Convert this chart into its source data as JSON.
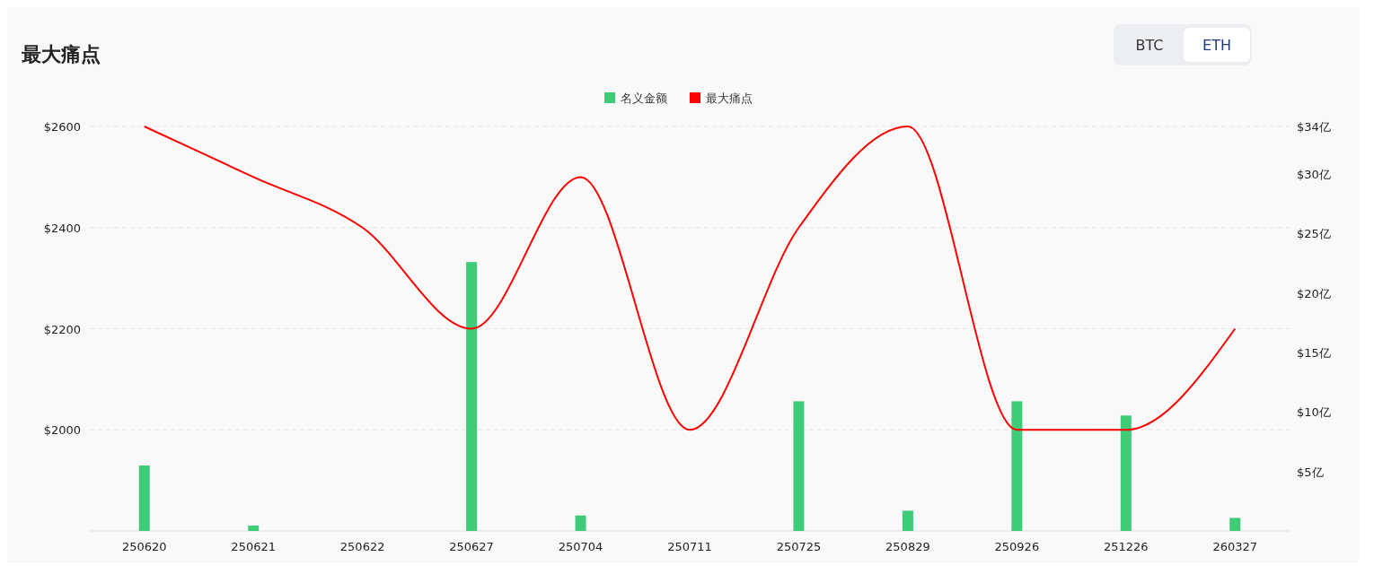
{
  "chart_data": {
    "type": "bar",
    "title": "最大痛点",
    "annotations": [
      "BTC",
      "ETH"
    ],
    "categories": [
      "250620",
      "250621",
      "250622",
      "250627",
      "250704",
      "250711",
      "250725",
      "250829",
      "250926",
      "251226",
      "260327"
    ],
    "series": [
      {
        "name": "名义金额",
        "axis": "y2",
        "color": "#3ecc78",
        "values": [
          5.5,
          0.45,
          0,
          22.6,
          1.3,
          0,
          10.9,
          1.7,
          10.9,
          9.7,
          1.1
        ]
      },
      {
        "name": "最大痛点",
        "type": "line",
        "color": "#ff0000",
        "values": [
          2600,
          2500,
          2400,
          2200,
          2500,
          2000,
          2400,
          2600,
          2000,
          2000,
          2200
        ]
      }
    ],
    "ylim": [
      1800,
      2600
    ],
    "yticks": [
      {
        "value": 2000,
        "label": "$2000"
      },
      {
        "value": 2200,
        "label": "$2200"
      },
      {
        "value": 2400,
        "label": "$2400"
      },
      {
        "value": 2600,
        "label": "$2600"
      }
    ],
    "y2lim": [
      0,
      34
    ],
    "y2ticks": [
      {
        "value": 5,
        "label": "$5亿"
      },
      {
        "value": 10,
        "label": "$10亿"
      },
      {
        "value": 15,
        "label": "$15亿"
      },
      {
        "value": 20,
        "label": "$20亿"
      },
      {
        "value": 25,
        "label": "$25亿"
      },
      {
        "value": 30,
        "label": "$30亿"
      },
      {
        "value": 34,
        "label": "$34亿"
      }
    ],
    "grid": "y",
    "legend": "top",
    "marker": "none",
    "line_style": "solid"
  }
}
